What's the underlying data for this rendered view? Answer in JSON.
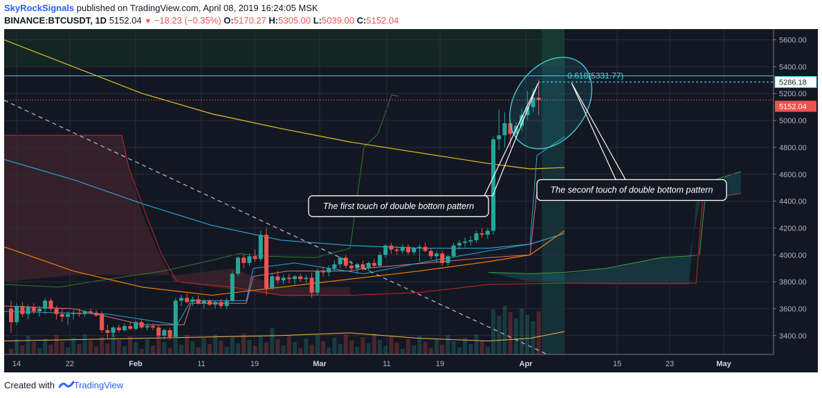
{
  "header": {
    "author": "SkyRockSignals",
    "published": "published on TradingView.com, April 08, 2019 16:24:05 MSK",
    "symbol": "BINANCE:BTCUSDT, 1D",
    "price": "5152.04",
    "change": "−18.23 (−0.35%)",
    "open_label": "O:",
    "open": "5170.27",
    "high_label": "H:",
    "high": "5305.00",
    "low_label": "L:",
    "low": "5039.00",
    "close_label": "C:",
    "close": "5152.04"
  },
  "footer": {
    "created_with": "Created with",
    "brand": "TradingView"
  },
  "colors": {
    "background": "#131722",
    "up": "#26a69a",
    "down": "#ef5350",
    "fib_line": "#4dd0e1",
    "ema_yellow": "#e6c229",
    "ema_blue": "#2aa5d8",
    "ema_orange": "#f57c00"
  },
  "chart_data": {
    "type": "candlestick",
    "y_axis_ticks": [
      "5600.00",
      "5400.00",
      "5200.00",
      "5000.00",
      "4800.00",
      "4600.00",
      "4400.00",
      "4200.00",
      "4000.00",
      "3800.00",
      "3600.00",
      "3400.00"
    ],
    "ylim": [
      3260,
      5680
    ],
    "x_axis_ticks": [
      "14",
      "22",
      "Feb",
      "11",
      "19",
      "Mar",
      "11",
      "19",
      "Apr",
      "15",
      "23",
      "May"
    ],
    "price_labels": {
      "level": "5286.18",
      "last": "5152.04"
    },
    "fib_label": "0.618(5331.77)",
    "fib_level": 5331.77,
    "horizontal_line": 5331.77,
    "annotations": [
      "The first touch of double bottom pattern",
      "The seconf touch of double bottom pattern"
    ],
    "candles": [
      {
        "o": 3600,
        "h": 3660,
        "l": 3420,
        "c": 3500
      },
      {
        "o": 3500,
        "h": 3640,
        "l": 3480,
        "c": 3620
      },
      {
        "o": 3620,
        "h": 3650,
        "l": 3540,
        "c": 3560
      },
      {
        "o": 3560,
        "h": 3630,
        "l": 3520,
        "c": 3610
      },
      {
        "o": 3610,
        "h": 3640,
        "l": 3560,
        "c": 3580
      },
      {
        "o": 3580,
        "h": 3620,
        "l": 3540,
        "c": 3600
      },
      {
        "o": 3600,
        "h": 3680,
        "l": 3560,
        "c": 3660
      },
      {
        "o": 3660,
        "h": 3680,
        "l": 3580,
        "c": 3600
      },
      {
        "o": 3600,
        "h": 3620,
        "l": 3520,
        "c": 3560
      },
      {
        "o": 3560,
        "h": 3600,
        "l": 3500,
        "c": 3540
      },
      {
        "o": 3540,
        "h": 3580,
        "l": 3480,
        "c": 3560
      },
      {
        "o": 3560,
        "h": 3590,
        "l": 3520,
        "c": 3570
      },
      {
        "o": 3570,
        "h": 3600,
        "l": 3540,
        "c": 3560
      },
      {
        "o": 3560,
        "h": 3590,
        "l": 3540,
        "c": 3580
      },
      {
        "o": 3580,
        "h": 3600,
        "l": 3560,
        "c": 3570
      },
      {
        "o": 3570,
        "h": 3590,
        "l": 3540,
        "c": 3550
      },
      {
        "o": 3560,
        "h": 3580,
        "l": 3420,
        "c": 3440
      },
      {
        "o": 3440,
        "h": 3480,
        "l": 3380,
        "c": 3420
      },
      {
        "o": 3420,
        "h": 3470,
        "l": 3390,
        "c": 3460
      },
      {
        "o": 3460,
        "h": 3480,
        "l": 3420,
        "c": 3440
      },
      {
        "o": 3440,
        "h": 3490,
        "l": 3430,
        "c": 3470
      },
      {
        "o": 3470,
        "h": 3500,
        "l": 3440,
        "c": 3450
      },
      {
        "o": 3450,
        "h": 3510,
        "l": 3440,
        "c": 3500
      },
      {
        "o": 3500,
        "h": 3520,
        "l": 3450,
        "c": 3460
      },
      {
        "o": 3460,
        "h": 3490,
        "l": 3440,
        "c": 3470
      },
      {
        "o": 3470,
        "h": 3490,
        "l": 3440,
        "c": 3460
      },
      {
        "o": 3460,
        "h": 3480,
        "l": 3380,
        "c": 3400
      },
      {
        "o": 3400,
        "h": 3450,
        "l": 3370,
        "c": 3440
      },
      {
        "o": 3440,
        "h": 3460,
        "l": 3370,
        "c": 3390
      },
      {
        "o": 3390,
        "h": 3680,
        "l": 3380,
        "c": 3660
      },
      {
        "o": 3660,
        "h": 3700,
        "l": 3620,
        "c": 3680
      },
      {
        "o": 3680,
        "h": 3710,
        "l": 3640,
        "c": 3650
      },
      {
        "o": 3650,
        "h": 3690,
        "l": 3620,
        "c": 3670
      },
      {
        "o": 3670,
        "h": 3700,
        "l": 3630,
        "c": 3640
      },
      {
        "o": 3640,
        "h": 3670,
        "l": 3600,
        "c": 3660
      },
      {
        "o": 3660,
        "h": 3670,
        "l": 3620,
        "c": 3630
      },
      {
        "o": 3630,
        "h": 3660,
        "l": 3600,
        "c": 3650
      },
      {
        "o": 3650,
        "h": 3670,
        "l": 3600,
        "c": 3620
      },
      {
        "o": 3620,
        "h": 3680,
        "l": 3600,
        "c": 3660
      },
      {
        "o": 3660,
        "h": 3880,
        "l": 3650,
        "c": 3860
      },
      {
        "o": 3860,
        "h": 3990,
        "l": 3840,
        "c": 3980
      },
      {
        "o": 3980,
        "h": 4000,
        "l": 3900,
        "c": 3940
      },
      {
        "o": 3940,
        "h": 4010,
        "l": 3920,
        "c": 3990
      },
      {
        "o": 3990,
        "h": 4040,
        "l": 3950,
        "c": 3970
      },
      {
        "o": 3970,
        "h": 4180,
        "l": 3950,
        "c": 4150
      },
      {
        "o": 4150,
        "h": 4200,
        "l": 3700,
        "c": 3750
      },
      {
        "o": 3750,
        "h": 3860,
        "l": 3740,
        "c": 3840
      },
      {
        "o": 3840,
        "h": 3880,
        "l": 3780,
        "c": 3810
      },
      {
        "o": 3810,
        "h": 3850,
        "l": 3780,
        "c": 3830
      },
      {
        "o": 3830,
        "h": 3860,
        "l": 3790,
        "c": 3820
      },
      {
        "o": 3820,
        "h": 3850,
        "l": 3780,
        "c": 3840
      },
      {
        "o": 3840,
        "h": 3860,
        "l": 3800,
        "c": 3820
      },
      {
        "o": 3820,
        "h": 3850,
        "l": 3790,
        "c": 3830
      },
      {
        "o": 3830,
        "h": 3870,
        "l": 3680,
        "c": 3720
      },
      {
        "o": 3720,
        "h": 3900,
        "l": 3700,
        "c": 3880
      },
      {
        "o": 3880,
        "h": 3910,
        "l": 3840,
        "c": 3870
      },
      {
        "o": 3870,
        "h": 3920,
        "l": 3840,
        "c": 3900
      },
      {
        "o": 3900,
        "h": 3960,
        "l": 3880,
        "c": 3930
      },
      {
        "o": 3930,
        "h": 3990,
        "l": 3900,
        "c": 3980
      },
      {
        "o": 3980,
        "h": 4000,
        "l": 3900,
        "c": 3920
      },
      {
        "o": 3920,
        "h": 3960,
        "l": 3880,
        "c": 3900
      },
      {
        "o": 3900,
        "h": 3940,
        "l": 3860,
        "c": 3930
      },
      {
        "o": 3930,
        "h": 3960,
        "l": 3880,
        "c": 3900
      },
      {
        "o": 3900,
        "h": 3950,
        "l": 3880,
        "c": 3940
      },
      {
        "o": 3940,
        "h": 3970,
        "l": 3900,
        "c": 3920
      },
      {
        "o": 3920,
        "h": 4020,
        "l": 3910,
        "c": 4000
      },
      {
        "o": 4000,
        "h": 4080,
        "l": 3980,
        "c": 4070
      },
      {
        "o": 4070,
        "h": 4090,
        "l": 4010,
        "c": 4040
      },
      {
        "o": 4040,
        "h": 4070,
        "l": 4000,
        "c": 4030
      },
      {
        "o": 4030,
        "h": 4080,
        "l": 4010,
        "c": 4060
      },
      {
        "o": 4060,
        "h": 4080,
        "l": 4000,
        "c": 4020
      },
      {
        "o": 4020,
        "h": 4060,
        "l": 4000,
        "c": 4050
      },
      {
        "o": 4050,
        "h": 4080,
        "l": 3950,
        "c": 4060
      },
      {
        "o": 4060,
        "h": 4090,
        "l": 4020,
        "c": 4030
      },
      {
        "o": 4030,
        "h": 4050,
        "l": 3970,
        "c": 3990
      },
      {
        "o": 3990,
        "h": 4030,
        "l": 3940,
        "c": 4010
      },
      {
        "o": 4010,
        "h": 4030,
        "l": 3920,
        "c": 3940
      },
      {
        "o": 3940,
        "h": 4000,
        "l": 3920,
        "c": 3990
      },
      {
        "o": 3990,
        "h": 4090,
        "l": 3980,
        "c": 4070
      },
      {
        "o": 4070,
        "h": 4110,
        "l": 4040,
        "c": 4090
      },
      {
        "o": 4090,
        "h": 4130,
        "l": 4060,
        "c": 4100
      },
      {
        "o": 4100,
        "h": 4140,
        "l": 4070,
        "c": 4110
      },
      {
        "o": 4110,
        "h": 4180,
        "l": 4090,
        "c": 4160
      },
      {
        "o": 4160,
        "h": 4200,
        "l": 4130,
        "c": 4150
      },
      {
        "o": 4150,
        "h": 4200,
        "l": 4120,
        "c": 4180
      },
      {
        "o": 4180,
        "h": 4880,
        "l": 4150,
        "c": 4860
      },
      {
        "o": 4860,
        "h": 5080,
        "l": 4780,
        "c": 4890
      },
      {
        "o": 4890,
        "h": 5060,
        "l": 4800,
        "c": 4980
      },
      {
        "o": 4980,
        "h": 5000,
        "l": 4800,
        "c": 4900
      },
      {
        "o": 4900,
        "h": 4990,
        "l": 4870,
        "c": 4960
      },
      {
        "o": 4960,
        "h": 5090,
        "l": 4920,
        "c": 5040
      },
      {
        "o": 5040,
        "h": 5220,
        "l": 5000,
        "c": 5100
      },
      {
        "o": 5100,
        "h": 5240,
        "l": 5060,
        "c": 5170
      },
      {
        "o": 5170,
        "h": 5305,
        "l": 5039,
        "c": 5152
      }
    ]
  }
}
